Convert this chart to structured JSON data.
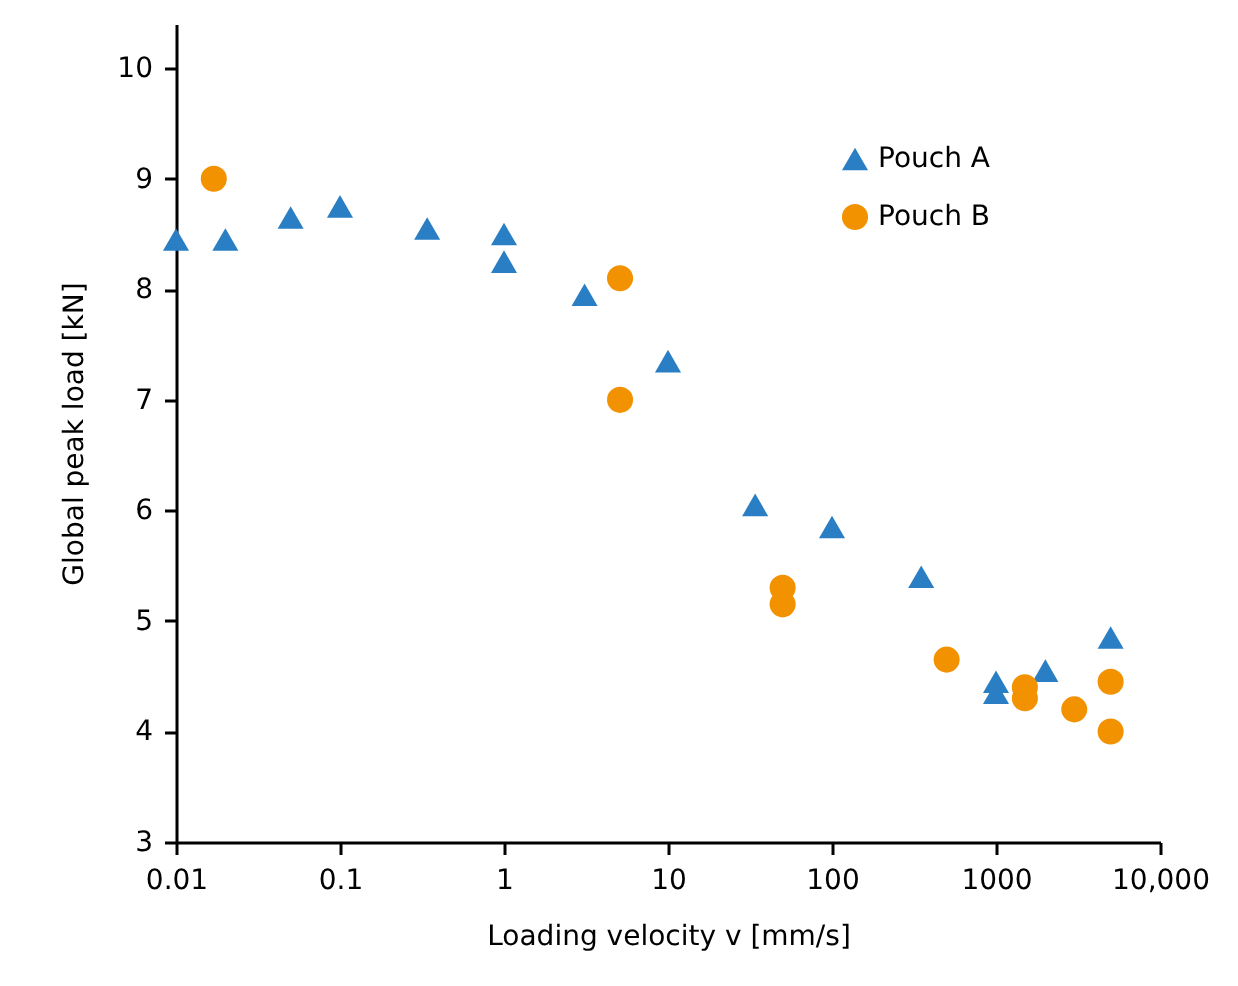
{
  "chart_data": {
    "type": "scatter",
    "xlabel": "Loading velocity v [mm/s]",
    "ylabel": "Global peak load [kN]",
    "log": "x",
    "xlim": [
      0.01,
      10000
    ],
    "xticks": [
      0.01,
      0.1,
      1,
      10,
      100,
      1000,
      {
        "value": 10000,
        "label": "10,000"
      }
    ],
    "ylim": [
      3,
      10.4
    ],
    "yticks": [
      3,
      4,
      5,
      6,
      7,
      8,
      9,
      10
    ],
    "grid": false,
    "legend": "top right",
    "series": [
      {
        "name": "Pouch A",
        "color": "#2a7fc4",
        "marker": "triangle",
        "x": [
          0.01,
          0.02,
          0.05,
          0.1,
          0.34,
          1,
          1,
          3.1,
          10,
          34,
          100,
          350,
          1000,
          1000,
          2000,
          5000
        ],
        "values": [
          8.45,
          8.45,
          8.65,
          8.75,
          8.55,
          8.5,
          8.25,
          7.95,
          7.35,
          6.05,
          5.85,
          5.4,
          4.45,
          4.35,
          4.55,
          4.85
        ]
      },
      {
        "name": "Pouch B",
        "color": "#f39200",
        "marker": "circle",
        "x": [
          0.017,
          5.1,
          5.1,
          50,
          50,
          500,
          1500,
          1500,
          3000,
          5000,
          5000
        ],
        "values": [
          9.0,
          8.1,
          7.0,
          5.3,
          5.15,
          4.65,
          4.4,
          4.3,
          4.2,
          4.45,
          4.0
        ]
      }
    ]
  }
}
